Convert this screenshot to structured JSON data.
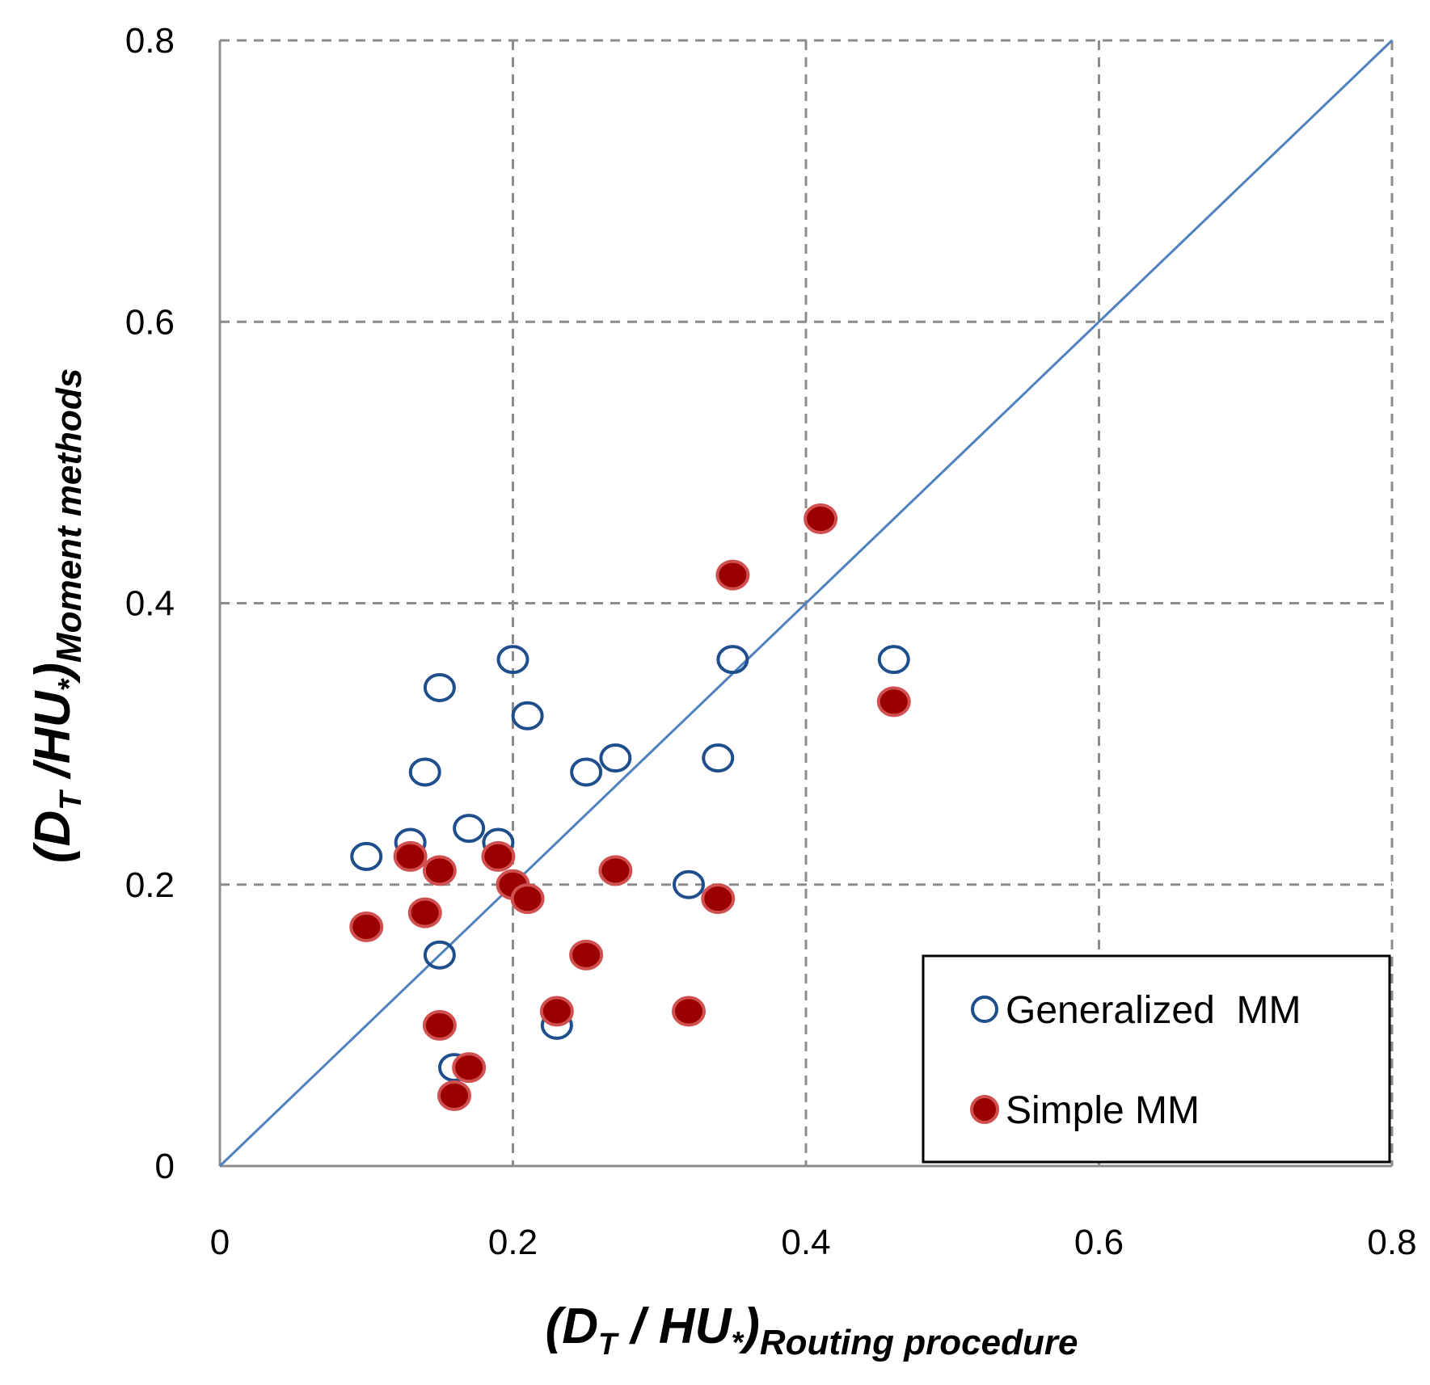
{
  "chart_data": {
    "type": "scatter",
    "xlim": [
      0,
      0.8
    ],
    "ylim": [
      0,
      0.8
    ],
    "x_ticks": [
      "0",
      "0.2",
      "0.4",
      "0.6",
      "0.8"
    ],
    "y_ticks": [
      "0",
      "0.2",
      "0.4",
      "0.6",
      "0.8"
    ],
    "grid": true,
    "reference_line": {
      "name": "1:1 line",
      "x": [
        0,
        0.8
      ],
      "y": [
        0,
        0.8
      ],
      "color": "#4F81BD"
    },
    "xlabel": {
      "main": "(D",
      "sub1": "T",
      "mid": " / HU",
      "star": "*",
      "close": ")",
      "sub2": "Routing procedure"
    },
    "ylabel": {
      "main": "(D",
      "sub1": "T",
      "mid": " /HU",
      "star": "*",
      "close": ")",
      "sub2": "Moment methods"
    },
    "legend": {
      "position": "bottom-right"
    },
    "series": [
      {
        "name": "Generalized  MM",
        "marker": "open-circle",
        "color": "#1F4E8C",
        "points": [
          [
            0.1,
            0.22
          ],
          [
            0.13,
            0.23
          ],
          [
            0.14,
            0.28
          ],
          [
            0.15,
            0.34
          ],
          [
            0.15,
            0.15
          ],
          [
            0.16,
            0.07
          ],
          [
            0.17,
            0.24
          ],
          [
            0.19,
            0.23
          ],
          [
            0.2,
            0.36
          ],
          [
            0.21,
            0.32
          ],
          [
            0.23,
            0.1
          ],
          [
            0.25,
            0.28
          ],
          [
            0.27,
            0.29
          ],
          [
            0.32,
            0.2
          ],
          [
            0.34,
            0.29
          ],
          [
            0.35,
            0.36
          ],
          [
            0.46,
            0.36
          ]
        ]
      },
      {
        "name": "Simple MM",
        "marker": "filled-circle",
        "color": "#9B0000",
        "edge_color": "#D05050",
        "points": [
          [
            0.1,
            0.17
          ],
          [
            0.13,
            0.22
          ],
          [
            0.14,
            0.18
          ],
          [
            0.15,
            0.21
          ],
          [
            0.15,
            0.1
          ],
          [
            0.16,
            0.05
          ],
          [
            0.17,
            0.07
          ],
          [
            0.19,
            0.22
          ],
          [
            0.2,
            0.2
          ],
          [
            0.21,
            0.19
          ],
          [
            0.23,
            0.11
          ],
          [
            0.25,
            0.15
          ],
          [
            0.27,
            0.21
          ],
          [
            0.32,
            0.11
          ],
          [
            0.34,
            0.19
          ],
          [
            0.35,
            0.42
          ],
          [
            0.41,
            0.46
          ],
          [
            0.46,
            0.33
          ]
        ]
      }
    ]
  }
}
